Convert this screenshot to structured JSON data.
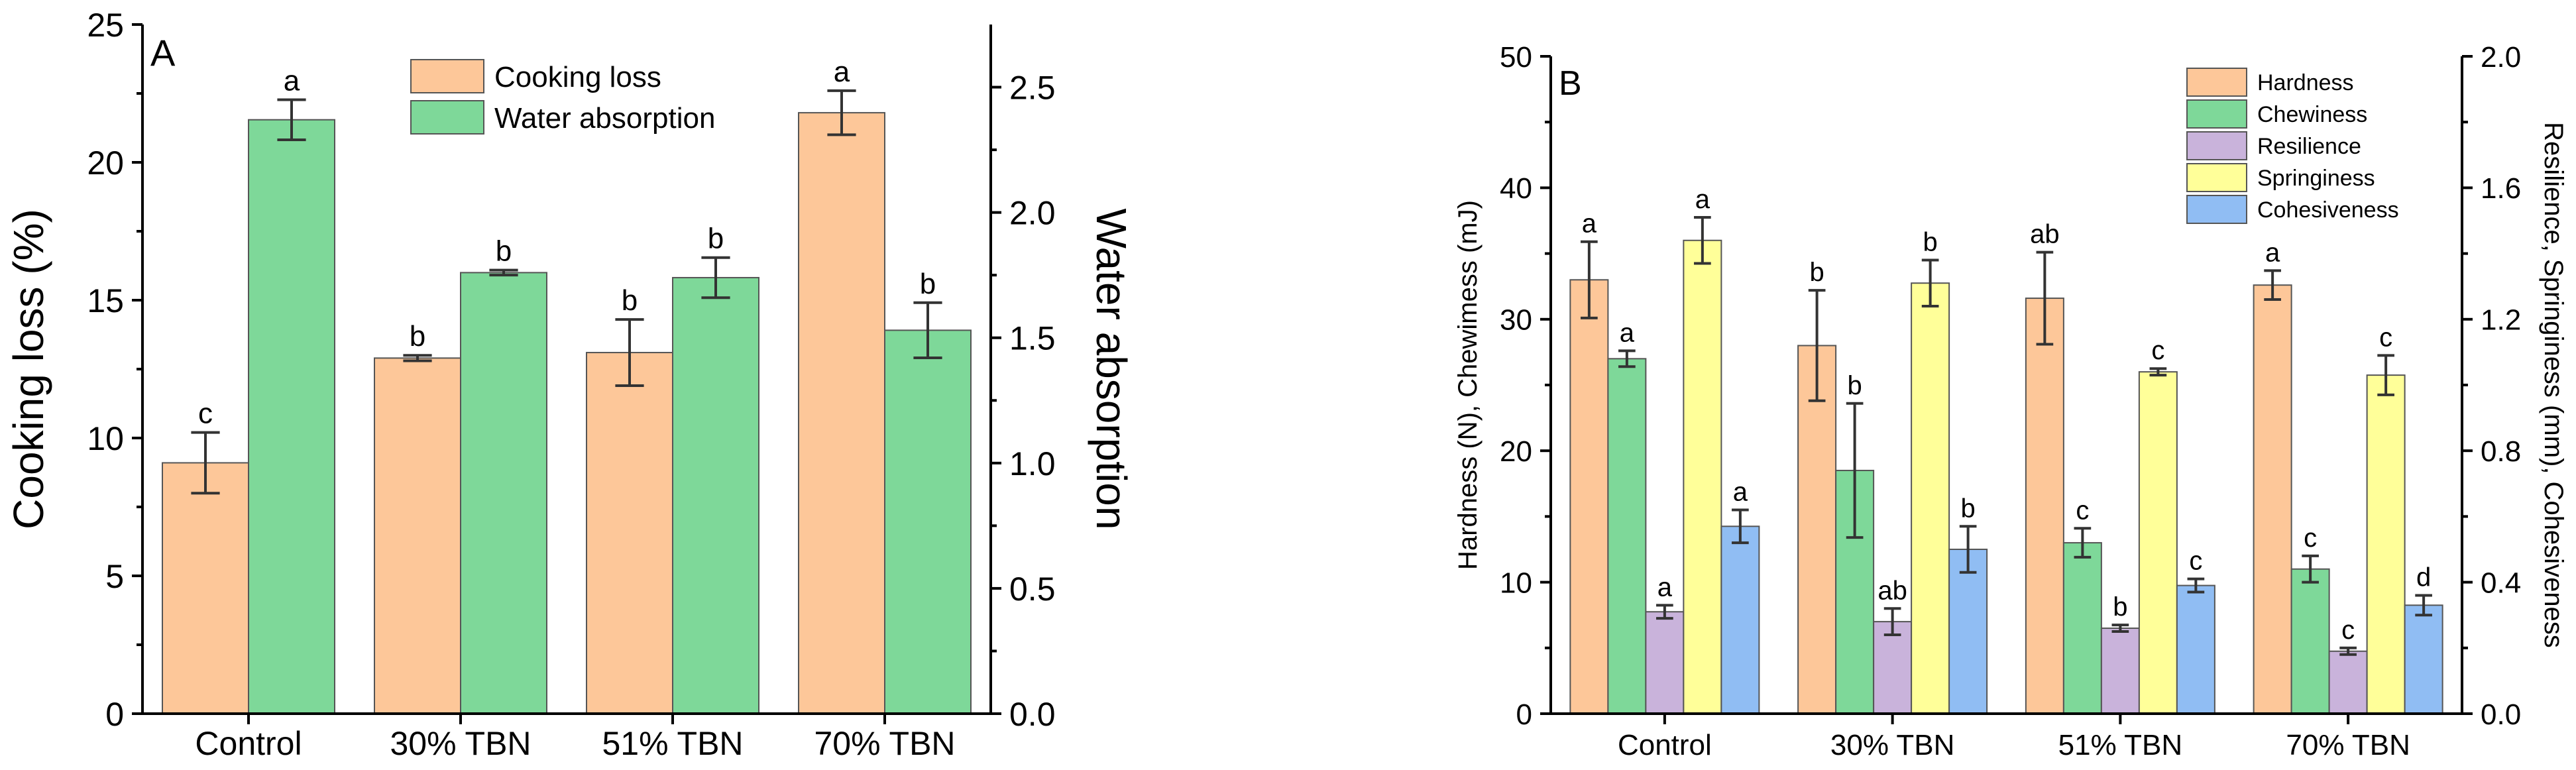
{
  "chart_data": [
    {
      "type": "bar",
      "panel_label": "A",
      "categories": [
        "Control",
        "30% TBN",
        "51% TBN",
        "70% TBN"
      ],
      "ylabel": "Cooking loss (%)",
      "y2label": "Water absorption",
      "ylim": [
        0,
        25
      ],
      "y2lim": [
        0,
        2.75
      ],
      "yticks": [
        "0",
        "5",
        "10",
        "15",
        "20",
        "25"
      ],
      "y2ticks": [
        "0.0",
        "0.5",
        "1.0",
        "1.5",
        "2.0",
        "2.5"
      ],
      "legend_position": "top-center",
      "series": [
        {
          "name": "Cooking loss",
          "axis": "left",
          "color": "#FDC799",
          "values": [
            9.1,
            12.9,
            13.1,
            21.8
          ],
          "errors": [
            1.1,
            0.1,
            1.2,
            0.8
          ],
          "letters": [
            "c",
            "b",
            "b",
            "a"
          ]
        },
        {
          "name": "Water absorption",
          "axis": "right",
          "color": "#7ED899",
          "values": [
            2.37,
            1.76,
            1.74,
            1.53
          ],
          "errors": [
            0.08,
            0.01,
            0.08,
            0.11
          ],
          "letters": [
            "a",
            "b",
            "b",
            "b"
          ]
        }
      ]
    },
    {
      "type": "bar",
      "panel_label": "B",
      "categories": [
        "Control",
        "30% TBN",
        "51% TBN",
        "70% TBN"
      ],
      "ylabel": "Hardness (N), Chewimess (mJ)",
      "y2label": "Resilience, Springiness (mm), Cohesiveness",
      "ylim": [
        0,
        50
      ],
      "y2lim": [
        0,
        2.0
      ],
      "yticks": [
        "0",
        "10",
        "20",
        "30",
        "40",
        "50"
      ],
      "y2ticks": [
        "0.0",
        "0.4",
        "0.8",
        "1.2",
        "1.6",
        "2.0"
      ],
      "legend_position": "top-right",
      "series": [
        {
          "name": "Hardness",
          "axis": "left",
          "color": "#FDC799",
          "values": [
            33.0,
            28.0,
            31.6,
            32.6
          ],
          "errors": [
            2.9,
            4.2,
            3.5,
            1.1
          ],
          "letters": [
            "a",
            "b",
            "ab",
            "a"
          ]
        },
        {
          "name": "Chewiness",
          "axis": "left",
          "color": "#7ED899",
          "values": [
            27.0,
            18.5,
            13.0,
            11.0
          ],
          "errors": [
            0.6,
            5.1,
            1.1,
            1.0
          ],
          "letters": [
            "a",
            "b",
            "c",
            "c"
          ]
        },
        {
          "name": "Resilience",
          "axis": "right",
          "color": "#C9B3DB",
          "values": [
            0.31,
            0.28,
            0.26,
            0.19
          ],
          "errors": [
            0.02,
            0.04,
            0.01,
            0.01
          ],
          "letters": [
            "a",
            "ab",
            "b",
            "c"
          ]
        },
        {
          "name": "Springiness",
          "axis": "right",
          "color": "#FFFF99",
          "values": [
            1.44,
            1.31,
            1.04,
            1.03
          ],
          "errors": [
            0.07,
            0.07,
            0.01,
            0.06
          ],
          "letters": [
            "a",
            "b",
            "c",
            "c"
          ]
        },
        {
          "name": "Cohesiveness",
          "axis": "right",
          "color": "#90BDF3",
          "values": [
            0.57,
            0.5,
            0.39,
            0.33
          ],
          "errors": [
            0.05,
            0.07,
            0.02,
            0.03
          ],
          "letters": [
            "a",
            "b",
            "c",
            "d"
          ]
        }
      ]
    }
  ]
}
